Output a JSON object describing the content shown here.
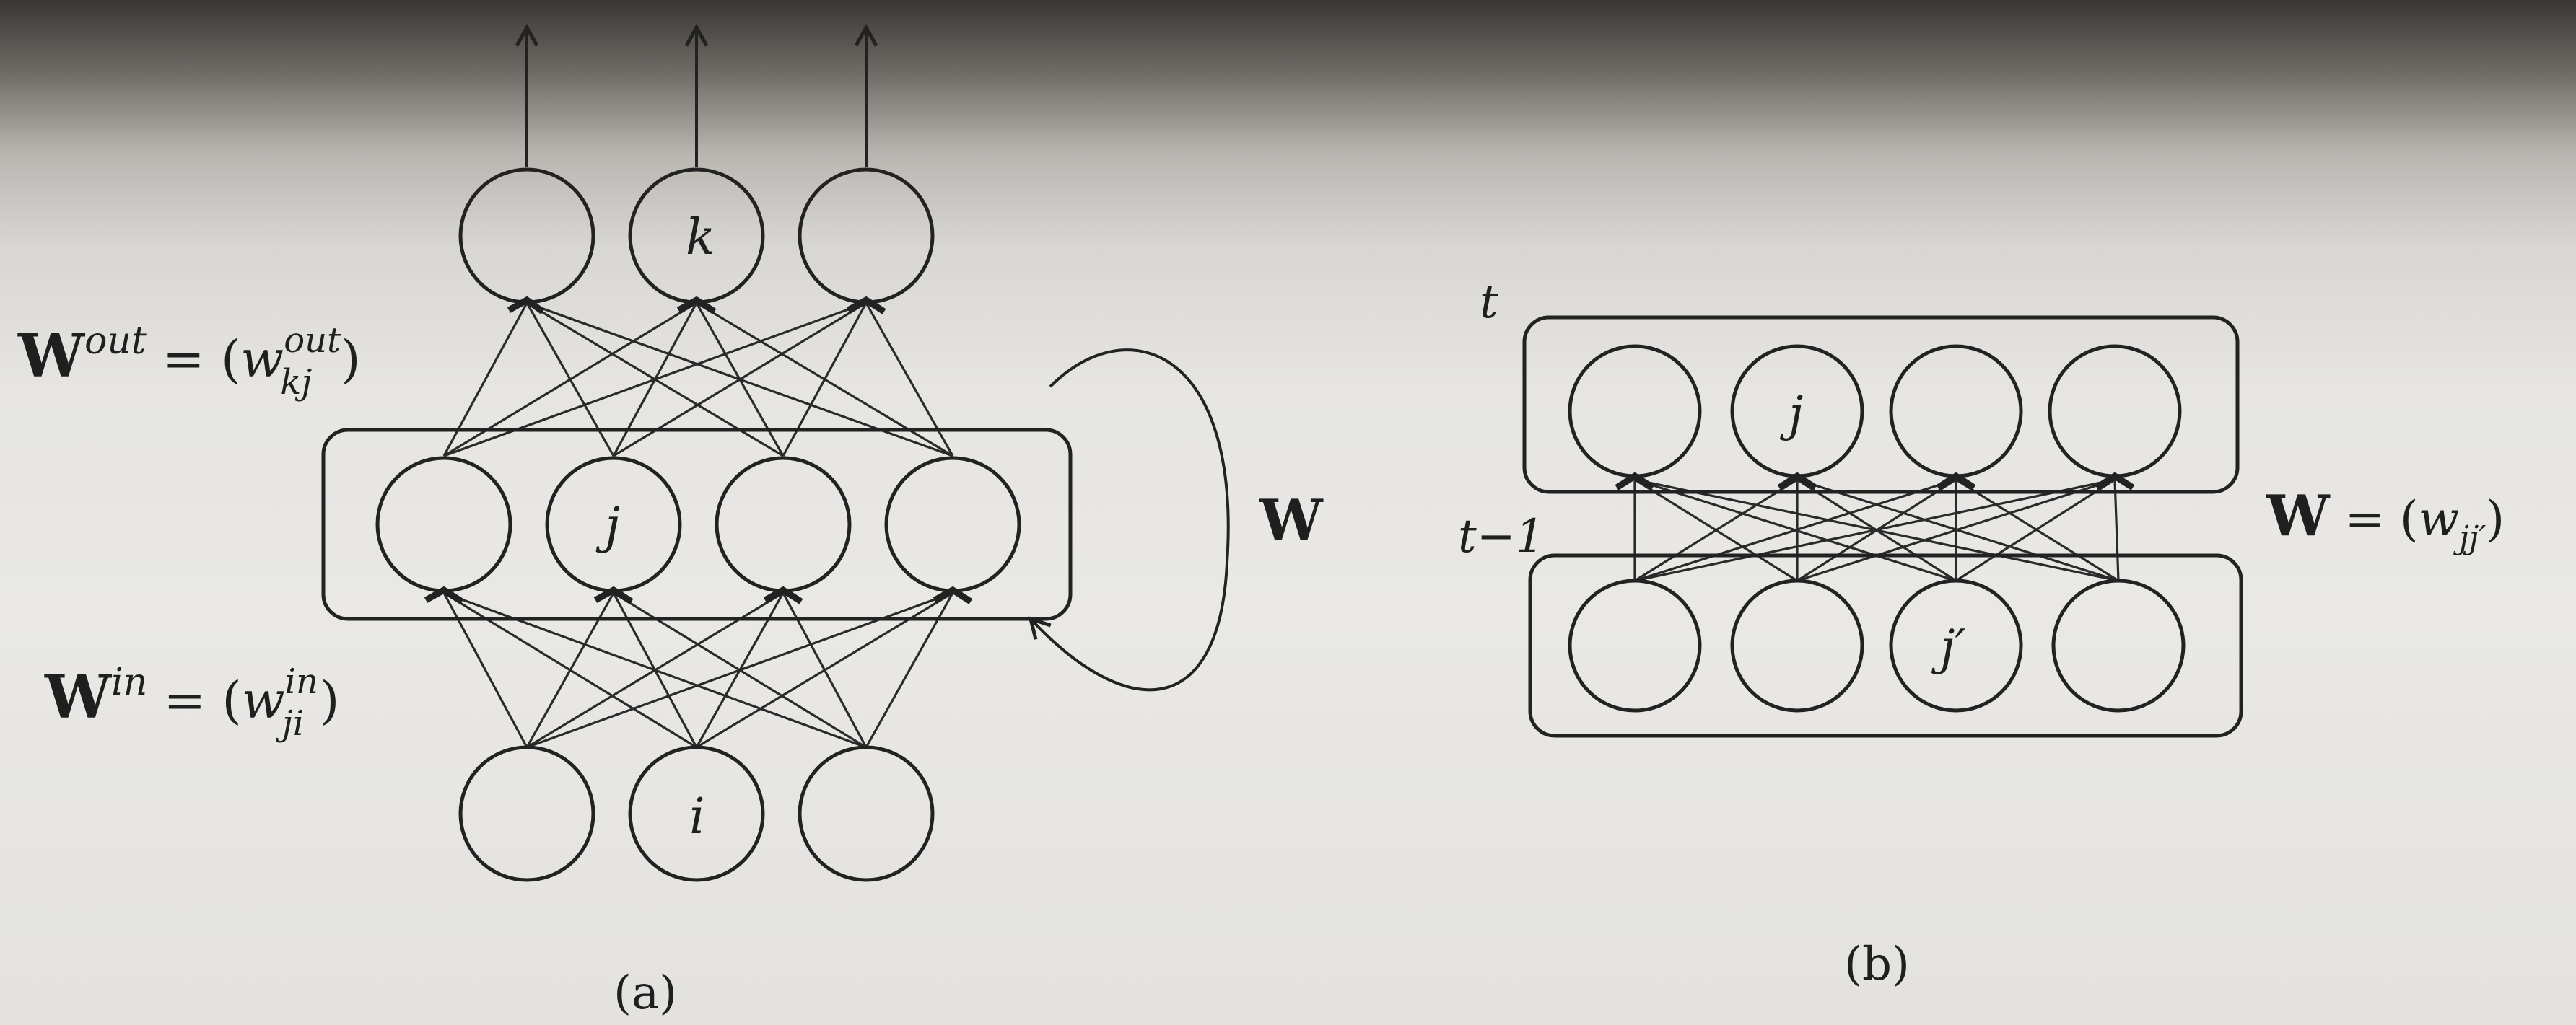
{
  "panel_a": {
    "caption": "(a)",
    "output_node_label": "k",
    "hidden_node_label": "j",
    "input_node_label": "i",
    "w_out": {
      "bold": "W",
      "sup": "out",
      "eq": " = (",
      "sym": "w",
      "sub_sup": "out",
      "sub": "kj",
      "close": ")"
    },
    "w_in": {
      "bold": "W",
      "sup": "in",
      "eq": " = (",
      "sym": "w",
      "sub_sup": "in",
      "sub": "ji",
      "close": ")"
    },
    "recurrent_label": "W"
  },
  "panel_b": {
    "caption": "(b)",
    "time_t": "t",
    "time_t_minus_1": "t−1",
    "upper_node_label": "j",
    "lower_node_label": "j′",
    "w": {
      "bold": "W",
      "eq": " = (",
      "sym": "w",
      "sub": "jj′",
      "close": ")"
    }
  }
}
